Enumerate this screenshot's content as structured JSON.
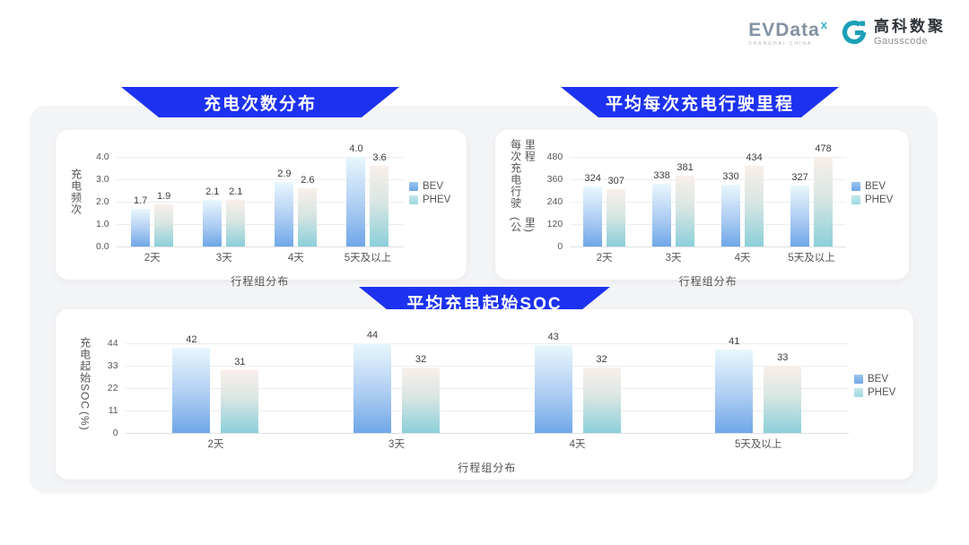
{
  "logo": {
    "brand": "EVData",
    "brand_sup": "x",
    "brand_caption": "SHANGHAI CHINA",
    "partner_cn": "高科数聚",
    "partner_en": "Gausscode"
  },
  "colors": {
    "banner_bg": "#1d32f0",
    "panel_bg": "#f3f4f6",
    "card_bg": "#ffffff",
    "bev_gradient_top": "#e9f7fd",
    "bev_gradient_bottom": "#6fa7e8",
    "phev_gradient_top": "#f9efeb",
    "phev_gradient_bottom": "#8bcfda",
    "logo_teal": "#1aa0b8"
  },
  "chart_data": [
    {
      "type": "bar",
      "title": "充电次数分布",
      "categories": [
        "2天",
        "3天",
        "4天",
        "5天及以上"
      ],
      "series": [
        {
          "name": "BEV",
          "values": [
            "1.7",
            "2.1",
            "2.9",
            "4.0"
          ]
        },
        {
          "name": "PHEV",
          "values": [
            "1.9",
            "2.1",
            "2.6",
            "3.6"
          ]
        }
      ],
      "ylabel_lines": [
        "充电频次"
      ],
      "yticks_top_to_bottom": [
        "4.0",
        "3.0",
        "2.0",
        "1.0",
        "0.0"
      ],
      "ymax": 4,
      "xlabel": "行程组分布",
      "legend": [
        "BEV",
        "PHEV"
      ],
      "legend_position": "right",
      "grid": true
    },
    {
      "type": "bar",
      "title": "平均每次充电行驶里程",
      "categories": [
        "2天",
        "3天",
        "4天",
        "5天及以上"
      ],
      "series": [
        {
          "name": "BEV",
          "values": [
            "324",
            "338",
            "330",
            "327"
          ]
        },
        {
          "name": "PHEV",
          "values": [
            "307",
            "381",
            "434",
            "478"
          ]
        }
      ],
      "ylabel_lines": [
        "每次充电行驶里程",
        "(公里)"
      ],
      "yticks_top_to_bottom": [
        "480",
        "360",
        "240",
        "120",
        "0"
      ],
      "ymax": 480,
      "xlabel": "行程组分布",
      "legend": [
        "BEV",
        "PHEV"
      ],
      "legend_position": "right",
      "grid": true
    },
    {
      "type": "bar",
      "title": "平均充电起始SOC",
      "categories": [
        "2天",
        "3天",
        "4天",
        "5天及以上"
      ],
      "series": [
        {
          "name": "BEV",
          "values": [
            "42",
            "44",
            "43",
            "41"
          ]
        },
        {
          "name": "PHEV",
          "values": [
            "31",
            "32",
            "32",
            "33"
          ]
        }
      ],
      "ylabel_lines": [
        "充电起始SOC",
        "(%)"
      ],
      "yticks_top_to_bottom": [
        "44",
        "33",
        "22",
        "11",
        "0"
      ],
      "ymax": 44,
      "xlabel": "行程组分布",
      "legend": [
        "BEV",
        "PHEV"
      ],
      "legend_position": "right",
      "grid": true
    }
  ]
}
